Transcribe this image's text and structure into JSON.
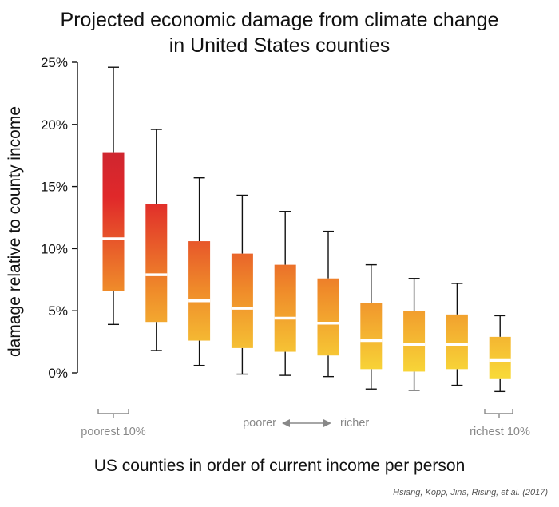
{
  "chart_data": {
    "type": "box",
    "title": "Projected economic damage from climate change",
    "subtitle": "in United States counties",
    "ylabel": "damage relative to county income",
    "xlabel": "US counties in order of current income per person",
    "ylim": [
      -2,
      25
    ],
    "yticks": [
      0,
      5,
      10,
      15,
      20,
      25
    ],
    "ytick_labels": [
      "0%",
      "5%",
      "10%",
      "15%",
      "20%",
      "25%"
    ],
    "boxes": [
      {
        "whisker_low": 3.9,
        "q1": 6.6,
        "median": 10.8,
        "q3": 17.7,
        "whisker_high": 24.6
      },
      {
        "whisker_low": 1.8,
        "q1": 4.1,
        "median": 7.9,
        "q3": 13.6,
        "whisker_high": 19.6
      },
      {
        "whisker_low": 0.6,
        "q1": 2.6,
        "median": 5.8,
        "q3": 10.6,
        "whisker_high": 15.7
      },
      {
        "whisker_low": -0.1,
        "q1": 2.0,
        "median": 5.2,
        "q3": 9.6,
        "whisker_high": 14.3
      },
      {
        "whisker_low": -0.2,
        "q1": 1.7,
        "median": 4.4,
        "q3": 8.7,
        "whisker_high": 13.0
      },
      {
        "whisker_low": -0.3,
        "q1": 1.4,
        "median": 4.0,
        "q3": 7.6,
        "whisker_high": 11.4
      },
      {
        "whisker_low": -1.3,
        "q1": 0.3,
        "median": 2.6,
        "q3": 5.6,
        "whisker_high": 8.7
      },
      {
        "whisker_low": -1.4,
        "q1": 0.1,
        "median": 2.3,
        "q3": 5.0,
        "whisker_high": 7.6
      },
      {
        "whisker_low": -1.0,
        "q1": 0.3,
        "median": 2.3,
        "q3": 4.7,
        "whisker_high": 7.2
      },
      {
        "whisker_low": -1.5,
        "q1": -0.5,
        "median": 1.0,
        "q3": 2.9,
        "whisker_high": 4.6
      }
    ],
    "annotations": {
      "left": "poorest 10%",
      "poorer": "poorer",
      "richer": "richer",
      "right": "richest 10%"
    },
    "credit": "Hsiang, Kopp, Jina, Rising, et al. (2017)",
    "colors": {
      "high": "#b0223a",
      "mid": "#e0282a",
      "low_mid": "#ef8a2a",
      "low": "#f8d838",
      "median_line": "#ffffff",
      "whisker": "#111111",
      "annotation": "#888888"
    },
    "grid": false
  }
}
